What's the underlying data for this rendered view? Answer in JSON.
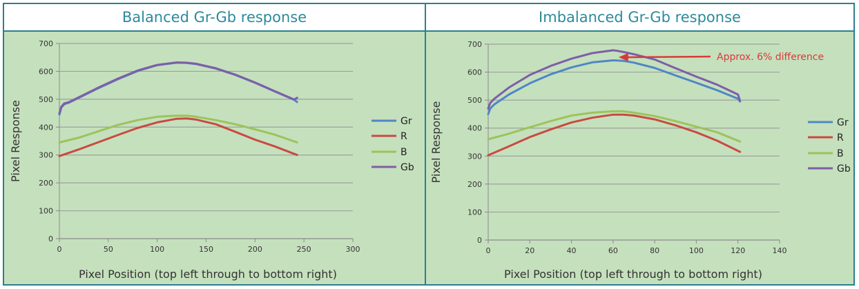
{
  "colors": {
    "Gr": "#4f86c6",
    "R": "#c94a42",
    "B": "#9cc35a",
    "Gb": "#7d5ea8",
    "annotation": "#d83a3a"
  },
  "chart_data": [
    {
      "type": "line",
      "title": "Balanced Gr-Gb response",
      "xlabel": "Pixel Position (top left through to bottom right)",
      "ylabel": "Pixel Response",
      "xlim": [
        0,
        300
      ],
      "ylim": [
        0,
        700
      ],
      "xticks": [
        0,
        50,
        100,
        150,
        200,
        250,
        300
      ],
      "yticks": [
        0,
        100,
        200,
        300,
        400,
        500,
        600,
        700
      ],
      "grid": "horizontal",
      "legend": "right",
      "series": [
        {
          "name": "Gr",
          "x": [
            0,
            2,
            5,
            10,
            20,
            40,
            60,
            80,
            100,
            120,
            130,
            140,
            160,
            180,
            200,
            220,
            240,
            243
          ],
          "y": [
            445,
            470,
            482,
            488,
            505,
            540,
            572,
            601,
            622,
            631,
            630,
            626,
            610,
            587,
            559,
            528,
            498,
            490
          ]
        },
        {
          "name": "R",
          "x": [
            0,
            20,
            40,
            60,
            80,
            100,
            120,
            130,
            140,
            160,
            180,
            200,
            220,
            243
          ],
          "y": [
            296,
            320,
            346,
            372,
            397,
            417,
            430,
            431,
            427,
            410,
            383,
            355,
            331,
            300
          ]
        },
        {
          "name": "B",
          "x": [
            0,
            20,
            40,
            60,
            80,
            100,
            120,
            130,
            140,
            160,
            180,
            200,
            220,
            243
          ],
          "y": [
            345,
            362,
            385,
            408,
            425,
            437,
            441,
            441,
            437,
            425,
            410,
            392,
            373,
            345
          ]
        },
        {
          "name": "Gb",
          "x": [
            0,
            2,
            5,
            10,
            20,
            40,
            60,
            80,
            100,
            120,
            130,
            140,
            160,
            180,
            200,
            220,
            240,
            243
          ],
          "y": [
            450,
            473,
            485,
            490,
            507,
            542,
            574,
            603,
            623,
            632,
            631,
            627,
            611,
            588,
            560,
            529,
            499,
            505
          ]
        }
      ]
    },
    {
      "type": "line",
      "title": "Imbalanced Gr-Gb response",
      "xlabel": "Pixel Position (top left through to bottom right)",
      "ylabel": "Pixel Response",
      "xlim": [
        0,
        140
      ],
      "ylim": [
        0,
        700
      ],
      "xticks": [
        0,
        20,
        40,
        60,
        80,
        100,
        120,
        140
      ],
      "yticks": [
        0,
        100,
        200,
        300,
        400,
        500,
        600,
        700
      ],
      "grid": "horizontal",
      "legend": "right",
      "annotation": {
        "text": "Approx. 6% difference",
        "x": 62,
        "y": 665
      },
      "series": [
        {
          "name": "Gr",
          "x": [
            0,
            1,
            3,
            10,
            20,
            30,
            40,
            50,
            60,
            65,
            70,
            80,
            90,
            100,
            110,
            120,
            121
          ],
          "y": [
            450,
            470,
            485,
            520,
            560,
            592,
            617,
            635,
            642,
            640,
            634,
            615,
            588,
            562,
            535,
            505,
            495
          ]
        },
        {
          "name": "R",
          "x": [
            0,
            10,
            20,
            30,
            40,
            50,
            60,
            65,
            70,
            80,
            90,
            100,
            110,
            121
          ],
          "y": [
            303,
            335,
            368,
            395,
            420,
            437,
            448,
            448,
            445,
            431,
            410,
            385,
            355,
            315
          ]
        },
        {
          "name": "B",
          "x": [
            0,
            10,
            20,
            30,
            40,
            50,
            60,
            65,
            70,
            80,
            90,
            100,
            110,
            121
          ],
          "y": [
            360,
            380,
            403,
            425,
            445,
            455,
            460,
            460,
            455,
            443,
            425,
            405,
            385,
            352
          ]
        },
        {
          "name": "Gb",
          "x": [
            0,
            1,
            3,
            10,
            20,
            30,
            40,
            50,
            60,
            62,
            65,
            70,
            80,
            90,
            100,
            110,
            120,
            121
          ],
          "y": [
            470,
            490,
            505,
            545,
            590,
            622,
            648,
            668,
            678,
            676,
            672,
            664,
            645,
            614,
            584,
            555,
            520,
            498
          ]
        }
      ]
    }
  ]
}
